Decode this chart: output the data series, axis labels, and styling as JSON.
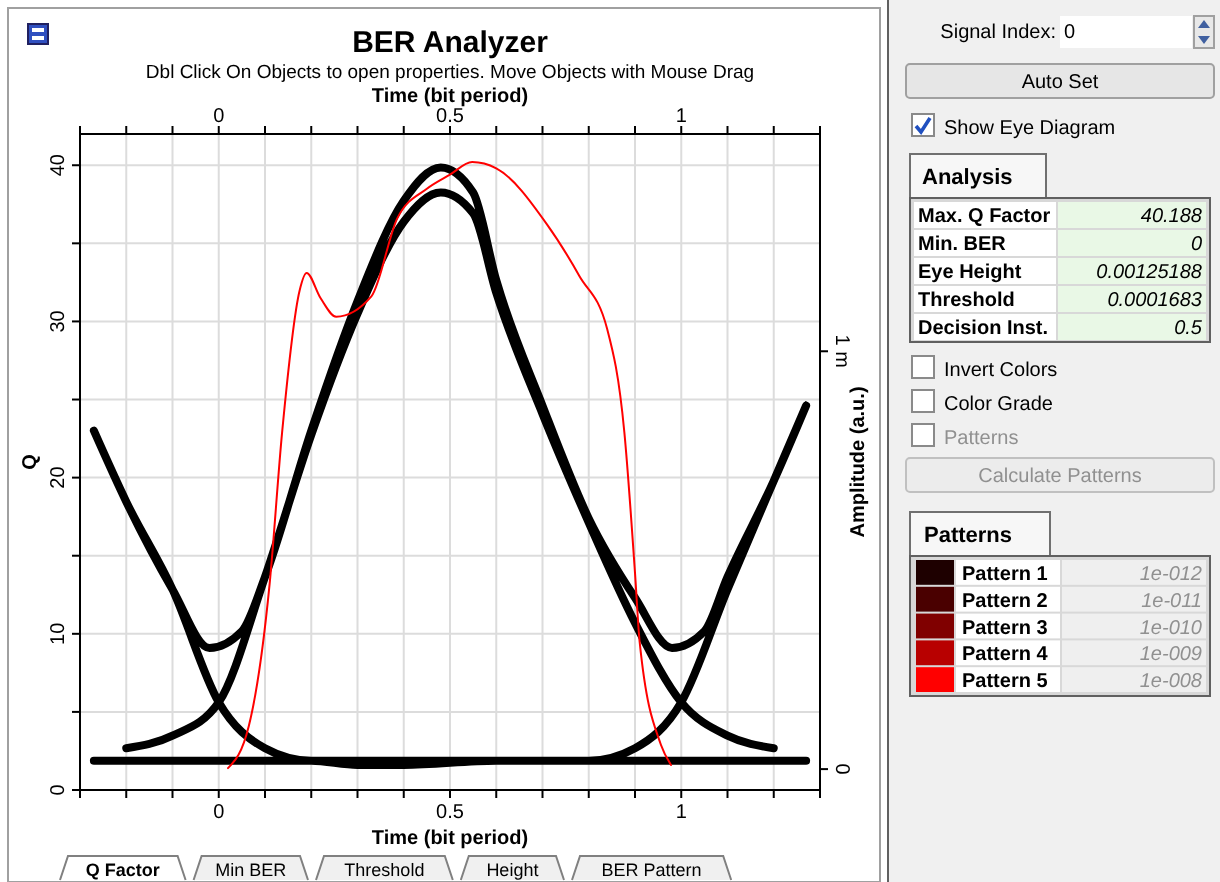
{
  "chart_data": [
    {
      "type": "line",
      "title": "BER Analyzer",
      "subtitle": "Dbl Click On Objects to open properties.  Move Objects with Mouse Drag",
      "xlabel": "Time (bit period)",
      "x2label": "Time (bit period)",
      "ylabel": "Q",
      "y2label": "Amplitude (a.u.)",
      "xlim": [
        -0.3,
        1.3
      ],
      "x2lim": [
        -0.3,
        1.3
      ],
      "ylim": [
        0,
        42
      ],
      "y2lim": [
        -0.05,
        1.52
      ],
      "xticks": [
        {
          "value": -0.3,
          "label": null
        },
        {
          "value": -0.2,
          "label": null
        },
        {
          "value": -0.1,
          "label": null
        },
        0,
        {
          "value": 0.1,
          "label": null
        },
        {
          "value": 0.2,
          "label": null
        },
        {
          "value": 0.3,
          "label": null
        },
        {
          "value": 0.4,
          "label": null
        },
        0.5,
        {
          "value": 0.6,
          "label": null
        },
        {
          "value": 0.7,
          "label": null
        },
        {
          "value": 0.8,
          "label": null
        },
        {
          "value": 0.9,
          "label": null
        },
        1,
        {
          "value": 1.1,
          "label": null
        },
        {
          "value": 1.2,
          "label": null
        },
        {
          "value": 1.3,
          "label": null
        }
      ],
      "x2ticks": [
        {
          "value": -0.3,
          "label": null
        },
        {
          "value": -0.2,
          "label": null
        },
        {
          "value": -0.1,
          "label": null
        },
        0,
        {
          "value": 0.1,
          "label": null
        },
        {
          "value": 0.2,
          "label": null
        },
        {
          "value": 0.3,
          "label": null
        },
        {
          "value": 0.4,
          "label": null
        },
        0.5,
        {
          "value": 0.6,
          "label": null
        },
        {
          "value": 0.7,
          "label": null
        },
        {
          "value": 0.8,
          "label": null
        },
        {
          "value": 0.9,
          "label": null
        },
        1,
        {
          "value": 1.1,
          "label": null
        },
        {
          "value": 1.2,
          "label": null
        },
        {
          "value": 1.3,
          "label": null
        }
      ],
      "yticks": [
        0,
        {
          "value": 5,
          "label": null
        },
        10,
        {
          "value": 15,
          "label": null
        },
        20,
        {
          "value": 25,
          "label": null
        },
        30,
        {
          "value": 35,
          "label": null
        },
        40
      ],
      "y2ticks": [
        0,
        {
          "value": 1,
          "label": "1 m"
        }
      ],
      "grid": true,
      "series": [
        {
          "color": "#000000",
          "axis": "y2",
          "x": [
            -0.2,
            -0.1,
            0,
            0.1,
            0.2,
            0.3,
            0.4,
            0.48,
            0.55,
            0.6,
            0.7,
            0.8,
            0.9,
            1,
            1.1,
            1.2,
            null,
            -0.27,
            -0.2,
            -0.1,
            -0.02,
            0.05,
            0.1,
            0.2,
            0.3,
            0.4,
            0.48,
            0.55,
            0.6,
            0.7,
            0.8,
            0.9,
            0.98,
            1.05,
            1.1,
            1.2,
            1.27,
            null,
            -0.27,
            -0.2,
            -0.1,
            0,
            0.1,
            0.2,
            0.5,
            0.8,
            0.9,
            1,
            1.1,
            1.2,
            1.27,
            null,
            -0.27,
            0,
            0.2,
            0.3,
            0.4,
            0.6,
            0.8,
            1,
            1.27
          ],
          "values": [
            0.05,
            0.08,
            0.16,
            0.46,
            0.8,
            1.09,
            1.31,
            1.38,
            1.33,
            1.14,
            0.85,
            0.59,
            0.35,
            0.16,
            0.08,
            0.05,
            null,
            0.81,
            0.64,
            0.43,
            0.29,
            0.33,
            0.46,
            0.81,
            1.12,
            1.36,
            1.44,
            1.38,
            1.17,
            0.87,
            0.6,
            0.41,
            0.29,
            0.33,
            0.46,
            0.69,
            0.87,
            null,
            0.81,
            0.64,
            0.43,
            0.16,
            0.05,
            0.02,
            0.02,
            0.02,
            0.05,
            0.16,
            0.43,
            0.69,
            0.87,
            null,
            0.02,
            0.02,
            0.02,
            0.01,
            0.01,
            0.02,
            0.02,
            0.02,
            0.02
          ]
        },
        {
          "color": "#ff0000",
          "axis": "y",
          "x": [
            0.02,
            0.065,
            0.11,
            0.137,
            0.175,
            0.19,
            0.22,
            0.254,
            0.33,
            0.386,
            0.45,
            0.5,
            0.548,
            0.6,
            0.71,
            0.78,
            0.84,
            0.877,
            0.9,
            0.91,
            0.956,
            0.978
          ],
          "values": [
            1.4,
            4.1,
            13.2,
            22.9,
            32,
            33.1,
            31.5,
            30.3,
            31.6,
            36.6,
            38.5,
            39.4,
            40.2,
            39.8,
            36.2,
            32.9,
            29.5,
            22.9,
            13.9,
            9.5,
            2.9,
            1.6
          ]
        }
      ],
      "annotations": [
        "Q Factor",
        "Min BER",
        "Threshold",
        "Height",
        "BER Pattern"
      ]
    },
    {
      "type": "other",
      "annotations": [
        "Signal Index:",
        "0",
        "Auto Set",
        "Show Eye Diagram",
        "Analysis",
        "Max. Q Factor",
        "40.188",
        "Min. BER",
        "0",
        "Eye Height",
        "0.00125188",
        "Threshold",
        "0.0001683",
        "Decision Inst.",
        "0.5",
        "Invert Colors",
        "Color Grade",
        "Patterns",
        "Calculate Patterns",
        "Patterns",
        "Pattern 1",
        "1e-012",
        "Pattern 2",
        "1e-011",
        "Pattern 3",
        "1e-010",
        "Pattern 4",
        "1e-009",
        "Pattern 5",
        "1e-008"
      ],
      "colors": [
        "#1e0000",
        "#4a0000",
        "#800000",
        "#b80000",
        "#ff0000"
      ]
    }
  ]
}
